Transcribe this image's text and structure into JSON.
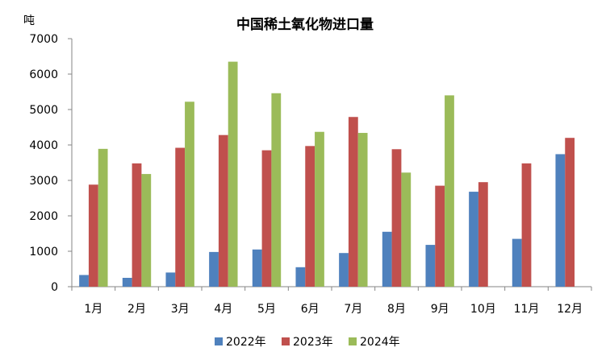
{
  "chart_data": {
    "type": "bar",
    "title": "中国稀土氧化物进口量",
    "ylabel": "吨",
    "xlabel": "",
    "ylim": [
      0,
      7000
    ],
    "yticks": [
      "0",
      "1000",
      "2000",
      "3000",
      "4000",
      "5000",
      "6000",
      "7000"
    ],
    "categories": [
      "1月",
      "2月",
      "3月",
      "4月",
      "5月",
      "6月",
      "7月",
      "8月",
      "9月",
      "10月",
      "11月",
      "12月"
    ],
    "legend_position": "bottom",
    "grid": false,
    "series": [
      {
        "name": "2022年",
        "color": "#4F81BD",
        "values": [
          330,
          250,
          400,
          980,
          1050,
          550,
          950,
          1550,
          1180,
          2680,
          1350,
          3740
        ]
      },
      {
        "name": "2023年",
        "color": "#C0504D",
        "values": [
          2880,
          3480,
          3920,
          4280,
          3850,
          3970,
          4790,
          3880,
          2850,
          2950,
          3480,
          4200
        ]
      },
      {
        "name": "2024年",
        "color": "#9BBB59",
        "values": [
          3890,
          3180,
          5220,
          6350,
          5460,
          4370,
          4340,
          3220,
          5400,
          null,
          null,
          null
        ]
      }
    ]
  }
}
